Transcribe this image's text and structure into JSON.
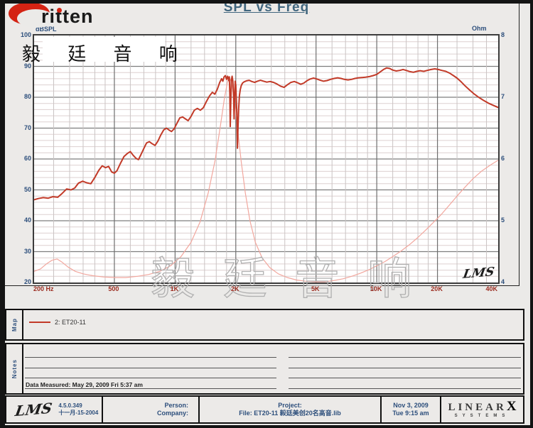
{
  "brand": {
    "name": "ritten",
    "cjk": "毅 廷 音 响"
  },
  "title": "SPL vs Freq",
  "chart_data": {
    "type": "line",
    "title": "SPL vs Freq",
    "grid": true,
    "x_axis": {
      "scale": "log",
      "min": 200,
      "max": 40000,
      "ticks": [
        {
          "f": 200,
          "label": "200 Hz"
        },
        {
          "f": 500,
          "label": "500"
        },
        {
          "f": 1000,
          "label": "1K"
        },
        {
          "f": 2000,
          "label": "2K"
        },
        {
          "f": 5000,
          "label": "5K"
        },
        {
          "f": 10000,
          "label": "10K"
        },
        {
          "f": 20000,
          "label": "20K"
        },
        {
          "f": 40000,
          "label": "40K"
        }
      ]
    },
    "y_left": {
      "label": "dBSPL",
      "min": 20,
      "max": 100,
      "ticks": [
        100,
        90,
        80,
        70,
        60,
        50,
        40,
        30,
        20
      ]
    },
    "y_right": {
      "label": "Ohm",
      "min": 4,
      "max": 8,
      "ticks": [
        8,
        7,
        6,
        5,
        4
      ]
    },
    "watermark": "毅 廷 音 响",
    "plot_logo": "LMS",
    "series": [
      {
        "name": "2: ET20-11",
        "axis": "left",
        "color": "#c23a28",
        "width": 2,
        "points": [
          [
            200,
            46.8
          ],
          [
            210,
            47.2
          ],
          [
            222,
            47.5
          ],
          [
            235,
            47.3
          ],
          [
            248,
            47.8
          ],
          [
            262,
            47.6
          ],
          [
            275,
            48.8
          ],
          [
            290,
            50.3
          ],
          [
            305,
            50.0
          ],
          [
            318,
            50.6
          ],
          [
            332,
            52.2
          ],
          [
            348,
            52.8
          ],
          [
            365,
            52.3
          ],
          [
            382,
            52.0
          ],
          [
            400,
            54.0
          ],
          [
            418,
            56.3
          ],
          [
            435,
            57.8
          ],
          [
            452,
            57.2
          ],
          [
            468,
            57.6
          ],
          [
            485,
            55.8
          ],
          [
            500,
            55.4
          ],
          [
            515,
            56.2
          ],
          [
            535,
            58.5
          ],
          [
            558,
            60.8
          ],
          [
            580,
            61.8
          ],
          [
            600,
            62.4
          ],
          [
            620,
            61.2
          ],
          [
            640,
            60.2
          ],
          [
            658,
            59.8
          ],
          [
            678,
            61.5
          ],
          [
            700,
            63.4
          ],
          [
            722,
            65.2
          ],
          [
            745,
            65.6
          ],
          [
            768,
            65.0
          ],
          [
            795,
            64.4
          ],
          [
            822,
            65.8
          ],
          [
            850,
            67.8
          ],
          [
            878,
            69.4
          ],
          [
            905,
            70.0
          ],
          [
            932,
            69.4
          ],
          [
            960,
            68.9
          ],
          [
            990,
            69.8
          ],
          [
            1020,
            71.5
          ],
          [
            1055,
            73.3
          ],
          [
            1090,
            73.6
          ],
          [
            1125,
            73.0
          ],
          [
            1160,
            72.4
          ],
          [
            1200,
            73.8
          ],
          [
            1245,
            75.8
          ],
          [
            1290,
            76.4
          ],
          [
            1335,
            75.8
          ],
          [
            1380,
            76.6
          ],
          [
            1430,
            78.6
          ],
          [
            1480,
            80.4
          ],
          [
            1530,
            81.6
          ],
          [
            1575,
            81.0
          ],
          [
            1620,
            82.6
          ],
          [
            1665,
            84.8
          ],
          [
            1700,
            86.0
          ],
          [
            1725,
            85.2
          ],
          [
            1750,
            86.6
          ],
          [
            1775,
            87.0
          ],
          [
            1800,
            85.8
          ],
          [
            1822,
            86.8
          ],
          [
            1845,
            85.4
          ],
          [
            1858,
            86.6
          ],
          [
            1868,
            81.0
          ],
          [
            1878,
            70.5
          ],
          [
            1890,
            79.0
          ],
          [
            1902,
            85.6
          ],
          [
            1918,
            86.8
          ],
          [
            1935,
            85.2
          ],
          [
            1950,
            80.0
          ],
          [
            1962,
            73.0
          ],
          [
            1975,
            80.5
          ],
          [
            1988,
            85.2
          ],
          [
            2000,
            84.0
          ],
          [
            2012,
            79.5
          ],
          [
            2025,
            75.0
          ],
          [
            2038,
            63.5
          ],
          [
            2052,
            70.0
          ],
          [
            2068,
            76.5
          ],
          [
            2085,
            80.5
          ],
          [
            2105,
            82.5
          ],
          [
            2130,
            83.8
          ],
          [
            2160,
            84.6
          ],
          [
            2200,
            85.0
          ],
          [
            2260,
            85.3
          ],
          [
            2330,
            85.5
          ],
          [
            2400,
            85.1
          ],
          [
            2480,
            84.8
          ],
          [
            2560,
            85.2
          ],
          [
            2650,
            85.5
          ],
          [
            2750,
            85.2
          ],
          [
            2850,
            84.9
          ],
          [
            2960,
            85.1
          ],
          [
            3080,
            84.8
          ],
          [
            3200,
            84.3
          ],
          [
            3330,
            83.6
          ],
          [
            3470,
            83.2
          ],
          [
            3600,
            84.0
          ],
          [
            3750,
            84.8
          ],
          [
            3900,
            85.1
          ],
          [
            4050,
            84.7
          ],
          [
            4200,
            84.2
          ],
          [
            4350,
            84.6
          ],
          [
            4500,
            85.3
          ],
          [
            4680,
            85.9
          ],
          [
            4860,
            86.2
          ],
          [
            5050,
            85.9
          ],
          [
            5250,
            85.5
          ],
          [
            5450,
            85.2
          ],
          [
            5670,
            85.4
          ],
          [
            5900,
            85.8
          ],
          [
            6150,
            86.1
          ],
          [
            6400,
            86.3
          ],
          [
            6650,
            86.1
          ],
          [
            6900,
            85.8
          ],
          [
            7200,
            85.6
          ],
          [
            7500,
            85.8
          ],
          [
            7800,
            86.1
          ],
          [
            8100,
            86.3
          ],
          [
            8450,
            86.4
          ],
          [
            8800,
            86.5
          ],
          [
            9200,
            86.7
          ],
          [
            9600,
            87.0
          ],
          [
            10000,
            87.4
          ],
          [
            10400,
            88.2
          ],
          [
            10800,
            89.0
          ],
          [
            11200,
            89.5
          ],
          [
            11600,
            89.3
          ],
          [
            12000,
            88.8
          ],
          [
            12500,
            88.5
          ],
          [
            13000,
            88.7
          ],
          [
            13500,
            89.0
          ],
          [
            14000,
            88.7
          ],
          [
            14600,
            88.3
          ],
          [
            15200,
            88.1
          ],
          [
            15800,
            88.4
          ],
          [
            16400,
            88.6
          ],
          [
            17100,
            88.4
          ],
          [
            17800,
            88.7
          ],
          [
            18600,
            89.0
          ],
          [
            19400,
            89.2
          ],
          [
            20200,
            89.0
          ],
          [
            21000,
            88.7
          ],
          [
            22000,
            88.4
          ],
          [
            23000,
            87.8
          ],
          [
            24000,
            87.0
          ],
          [
            25000,
            86.2
          ],
          [
            26200,
            85.0
          ],
          [
            27500,
            83.6
          ],
          [
            29000,
            82.2
          ],
          [
            30500,
            81.0
          ],
          [
            32000,
            80.0
          ],
          [
            34000,
            78.9
          ],
          [
            36000,
            78.0
          ],
          [
            38000,
            77.3
          ],
          [
            40000,
            76.7
          ]
        ]
      },
      {
        "name": "impedance",
        "axis": "right",
        "color": "#f2a79e",
        "width": 1.2,
        "points": [
          [
            200,
            4.18
          ],
          [
            215,
            4.22
          ],
          [
            230,
            4.3
          ],
          [
            245,
            4.36
          ],
          [
            260,
            4.38
          ],
          [
            275,
            4.33
          ],
          [
            295,
            4.25
          ],
          [
            320,
            4.18
          ],
          [
            350,
            4.14
          ],
          [
            390,
            4.11
          ],
          [
            440,
            4.09
          ],
          [
            500,
            4.08
          ],
          [
            570,
            4.08
          ],
          [
            650,
            4.1
          ],
          [
            740,
            4.13
          ],
          [
            840,
            4.18
          ],
          [
            950,
            4.27
          ],
          [
            1070,
            4.42
          ],
          [
            1200,
            4.65
          ],
          [
            1330,
            4.98
          ],
          [
            1460,
            5.45
          ],
          [
            1580,
            5.98
          ],
          [
            1680,
            6.55
          ],
          [
            1760,
            7.0
          ],
          [
            1820,
            7.25
          ],
          [
            1860,
            7.32
          ],
          [
            1900,
            7.25
          ],
          [
            1960,
            7.0
          ],
          [
            2040,
            6.5
          ],
          [
            2130,
            5.95
          ],
          [
            2230,
            5.45
          ],
          [
            2350,
            5.0
          ],
          [
            2500,
            4.65
          ],
          [
            2700,
            4.4
          ],
          [
            2950,
            4.24
          ],
          [
            3250,
            4.14
          ],
          [
            3600,
            4.08
          ],
          [
            4000,
            4.04
          ],
          [
            4450,
            4.02
          ],
          [
            4950,
            4.01
          ],
          [
            5500,
            4.01
          ],
          [
            6100,
            4.03
          ],
          [
            6800,
            4.06
          ],
          [
            7500,
            4.1
          ],
          [
            8300,
            4.15
          ],
          [
            9200,
            4.21
          ],
          [
            10000,
            4.27
          ],
          [
            11000,
            4.34
          ],
          [
            12000,
            4.42
          ],
          [
            13200,
            4.51
          ],
          [
            14500,
            4.61
          ],
          [
            16000,
            4.73
          ],
          [
            17500,
            4.85
          ],
          [
            19200,
            4.98
          ],
          [
            21000,
            5.11
          ],
          [
            23000,
            5.26
          ],
          [
            25000,
            5.4
          ],
          [
            27500,
            5.55
          ],
          [
            30000,
            5.68
          ],
          [
            33000,
            5.8
          ],
          [
            36500,
            5.9
          ],
          [
            40000,
            5.98
          ]
        ]
      }
    ]
  },
  "legend": {
    "side_label": "Map",
    "items": [
      {
        "label": "2: ET20-11",
        "color": "#c23a28"
      }
    ]
  },
  "notes": {
    "side_label": "Notes",
    "measured": "Data Measured: May 29, 2009 Fri 5:37 am"
  },
  "footer": {
    "lms_logo": "LMS",
    "version": "4.5.0.349",
    "version_date": "十一月-15-2004",
    "person_label": "Person:",
    "company_label": "Company:",
    "project_label": "Project:",
    "file_label": "File: ET20-11 毅廷美创20名高音.lib",
    "date": "Nov 3, 2009",
    "time": "Tue 9:15 am",
    "linearx_line1": "LINEAR",
    "linearx_x": "X",
    "linearx_line2": "SYSTEMS"
  }
}
